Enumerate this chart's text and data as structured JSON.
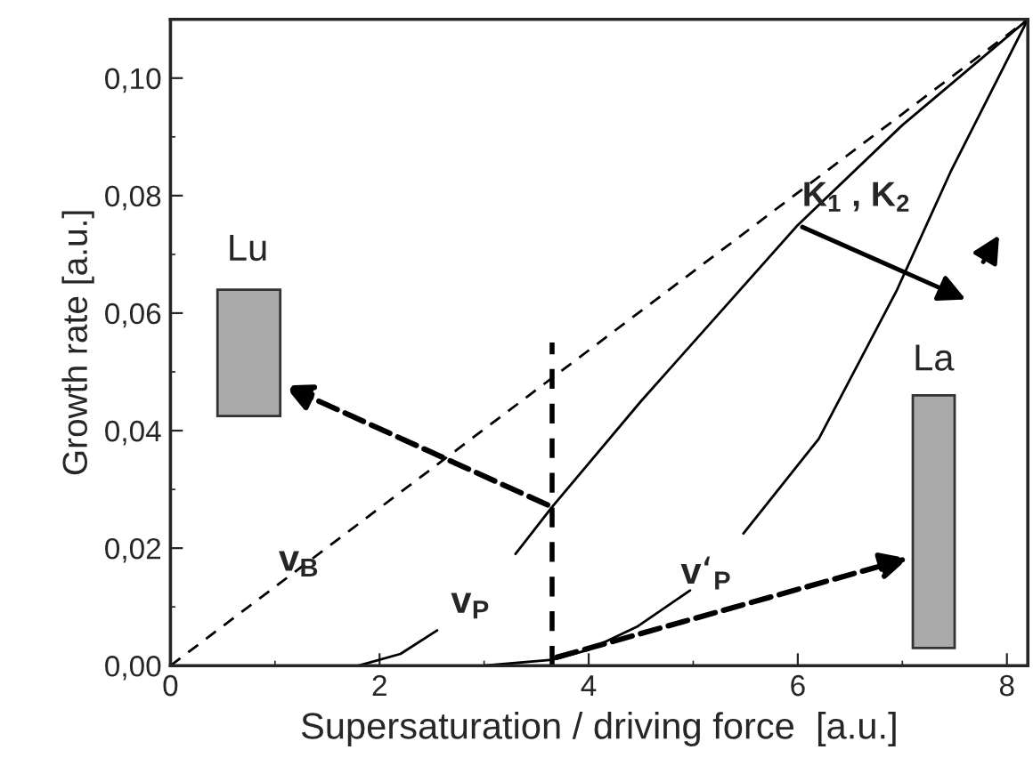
{
  "chart_data": {
    "type": "line",
    "xlabel": "Supersaturation / driving force  [a.u.]",
    "ylabel": "Growth rate [a.u.]",
    "xlim": [
      0,
      8.2
    ],
    "ylim": [
      0,
      0.11
    ],
    "xticks": [
      0,
      2,
      4,
      6,
      8
    ],
    "yticks": [
      {
        "value": 0,
        "label": "0,00"
      },
      {
        "value": 0.02,
        "label": "0,02"
      },
      {
        "value": 0.04,
        "label": "0,04"
      },
      {
        "value": 0.06,
        "label": "0,06"
      },
      {
        "value": 0.08,
        "label": "0,08"
      },
      {
        "value": 0.1,
        "label": "0,10"
      }
    ],
    "grid": false,
    "legend": false,
    "series": [
      {
        "color": "#000000",
        "line_style": "dashed",
        "x": [
          0,
          8.2
        ],
        "values": [
          0,
          0.11
        ]
      },
      {
        "color": "#000000",
        "line_style": "solid",
        "x": [
          1.8,
          2.2,
          2.55,
          2.9,
          3.3,
          3.65,
          4.5,
          5.3,
          6.0,
          7.0,
          8.2
        ],
        "values": [
          0,
          0.002,
          0.006,
          null,
          0.019,
          0.027,
          0.045,
          0.061,
          0.075,
          0.092,
          0.11
        ]
      },
      {
        "color": "#000000",
        "line_style": "solid",
        "x": [
          3.0,
          3.65,
          4.0,
          4.47,
          4.97,
          5.2,
          5.48,
          6.2,
          6.95,
          7.46,
          8.2
        ],
        "values": [
          0,
          0.001,
          0.0027,
          0.0067,
          0.0128,
          null,
          0.0225,
          0.0386,
          0.064,
          0.084,
          0.11
        ]
      },
      {
        "color": "#000000",
        "line_style": "dashed",
        "x": [
          3.65,
          3.65
        ],
        "values": [
          0,
          0.055
        ]
      }
    ],
    "annotations": [
      "v$_{B}$",
      "v$_{P}$",
      "v‘$_{P}$",
      {
        "text": "K$_{1}$ , K$_{2}$",
        "x": 6.0,
        "y": 0.075
      },
      "Lu",
      "La"
    ]
  }
}
